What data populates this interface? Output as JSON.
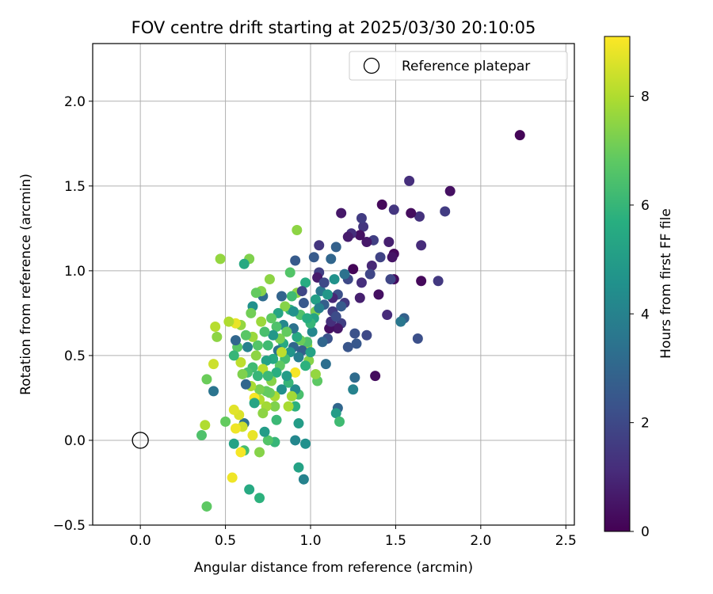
{
  "chart_data": {
    "type": "scatter",
    "title": "FOV centre drift starting at 2025/03/30 20:10:05",
    "xlabel": "Angular distance from reference (arcmin)",
    "ylabel": "Rotation from reference (arcmin)",
    "xlim": [
      -0.28,
      2.55
    ],
    "ylim": [
      -0.5,
      2.34
    ],
    "x_ticks": [
      "0.0",
      "0.5",
      "1.0",
      "1.5",
      "2.0",
      "2.5"
    ],
    "y_ticks": [
      "−0.5",
      "0.0",
      "0.5",
      "1.0",
      "1.5",
      "2.0"
    ],
    "grid": true,
    "legend": {
      "position": "top-right",
      "entries": [
        "Reference platepar"
      ]
    },
    "reference_point": {
      "x": 0.0,
      "y": 0.0
    },
    "colorbar": {
      "label": "Hours from first FF file",
      "colormap": "viridis",
      "range": [
        0,
        9.1
      ],
      "ticks": [
        "0",
        "2",
        "4",
        "6",
        "8"
      ]
    },
    "points": [
      {
        "x": 2.23,
        "y": 1.8,
        "c": 0.1
      },
      {
        "x": 1.82,
        "y": 1.47,
        "c": 0.4
      },
      {
        "x": 1.79,
        "y": 1.35,
        "c": 1.6
      },
      {
        "x": 1.75,
        "y": 0.94,
        "c": 1.5
      },
      {
        "x": 1.65,
        "y": 0.94,
        "c": 0.2
      },
      {
        "x": 1.64,
        "y": 1.32,
        "c": 1.3
      },
      {
        "x": 1.65,
        "y": 1.15,
        "c": 1.1
      },
      {
        "x": 1.63,
        "y": 0.6,
        "c": 2.2
      },
      {
        "x": 1.58,
        "y": 1.53,
        "c": 1.2
      },
      {
        "x": 1.59,
        "y": 1.34,
        "c": 0.3
      },
      {
        "x": 1.55,
        "y": 0.72,
        "c": 2.8
      },
      {
        "x": 1.53,
        "y": 0.7,
        "c": 3.6
      },
      {
        "x": 1.49,
        "y": 1.36,
        "c": 1.4
      },
      {
        "x": 1.49,
        "y": 1.1,
        "c": 0.2
      },
      {
        "x": 1.49,
        "y": 0.95,
        "c": 0.3
      },
      {
        "x": 1.48,
        "y": 1.08,
        "c": 0.5
      },
      {
        "x": 1.47,
        "y": 0.95,
        "c": 1.9
      },
      {
        "x": 1.46,
        "y": 1.17,
        "c": 0.8
      },
      {
        "x": 1.45,
        "y": 0.74,
        "c": 1.1
      },
      {
        "x": 1.42,
        "y": 1.39,
        "c": 0.2
      },
      {
        "x": 1.41,
        "y": 1.08,
        "c": 1.8
      },
      {
        "x": 1.4,
        "y": 0.86,
        "c": 0.4
      },
      {
        "x": 1.38,
        "y": 0.38,
        "c": 0.3
      },
      {
        "x": 1.37,
        "y": 1.18,
        "c": 1.7
      },
      {
        "x": 1.36,
        "y": 1.03,
        "c": 1.0
      },
      {
        "x": 1.35,
        "y": 0.98,
        "c": 1.9
      },
      {
        "x": 1.33,
        "y": 1.17,
        "c": 0.6
      },
      {
        "x": 1.31,
        "y": 1.26,
        "c": 1.4
      },
      {
        "x": 1.3,
        "y": 1.31,
        "c": 1.6
      },
      {
        "x": 1.3,
        "y": 0.93,
        "c": 1.2
      },
      {
        "x": 1.29,
        "y": 0.84,
        "c": 0.8
      },
      {
        "x": 1.29,
        "y": 1.21,
        "c": 0.4
      },
      {
        "x": 1.33,
        "y": 0.62,
        "c": 2.0
      },
      {
        "x": 1.27,
        "y": 0.57,
        "c": 2.5
      },
      {
        "x": 1.26,
        "y": 0.63,
        "c": 2.3
      },
      {
        "x": 1.26,
        "y": 0.37,
        "c": 3.2
      },
      {
        "x": 1.25,
        "y": 0.3,
        "c": 4.0
      },
      {
        "x": 1.25,
        "y": 1.01,
        "c": 0.1
      },
      {
        "x": 1.24,
        "y": 1.22,
        "c": 1.2
      },
      {
        "x": 1.22,
        "y": 1.2,
        "c": 0.7
      },
      {
        "x": 1.22,
        "y": 0.55,
        "c": 2.4
      },
      {
        "x": 1.22,
        "y": 0.95,
        "c": 2.0
      },
      {
        "x": 1.2,
        "y": 0.81,
        "c": 1.5
      },
      {
        "x": 1.18,
        "y": 1.34,
        "c": 0.6
      },
      {
        "x": 1.18,
        "y": 0.69,
        "c": 1.7
      },
      {
        "x": 1.16,
        "y": 0.86,
        "c": 2.2
      },
      {
        "x": 1.16,
        "y": 0.66,
        "c": 0.6
      },
      {
        "x": 1.16,
        "y": 0.19,
        "c": 3.0
      },
      {
        "x": 1.15,
        "y": 0.16,
        "c": 5.0
      },
      {
        "x": 1.17,
        "y": 0.11,
        "c": 6.2
      },
      {
        "x": 1.15,
        "y": 1.14,
        "c": 2.8
      },
      {
        "x": 1.14,
        "y": 0.95,
        "c": 4.6
      },
      {
        "x": 1.13,
        "y": 0.84,
        "c": 1.0
      },
      {
        "x": 1.13,
        "y": 0.76,
        "c": 1.6
      },
      {
        "x": 1.12,
        "y": 1.07,
        "c": 3.0
      },
      {
        "x": 1.11,
        "y": 0.66,
        "c": 0.4
      },
      {
        "x": 1.1,
        "y": 0.6,
        "c": 2.3
      },
      {
        "x": 1.09,
        "y": 0.45,
        "c": 3.3
      },
      {
        "x": 1.08,
        "y": 0.8,
        "c": 2.7
      },
      {
        "x": 1.07,
        "y": 0.58,
        "c": 3.0
      },
      {
        "x": 1.06,
        "y": 0.88,
        "c": 3.6
      },
      {
        "x": 1.05,
        "y": 1.15,
        "c": 1.4
      },
      {
        "x": 1.05,
        "y": 0.99,
        "c": 1.7
      },
      {
        "x": 1.04,
        "y": 0.96,
        "c": 0.7
      },
      {
        "x": 1.03,
        "y": 0.83,
        "c": 5.1
      },
      {
        "x": 1.04,
        "y": 0.35,
        "c": 6.8
      },
      {
        "x": 1.03,
        "y": 0.39,
        "c": 7.6
      },
      {
        "x": 1.03,
        "y": 0.76,
        "c": 7.3
      },
      {
        "x": 1.02,
        "y": 0.72,
        "c": 5.3
      },
      {
        "x": 1.02,
        "y": 1.08,
        "c": 2.6
      },
      {
        "x": 1.01,
        "y": 0.64,
        "c": 4.2
      },
      {
        "x": 1.0,
        "y": 0.69,
        "c": 6.0
      },
      {
        "x": 0.99,
        "y": 0.47,
        "c": 7.4
      },
      {
        "x": 0.98,
        "y": 0.56,
        "c": 7.7
      },
      {
        "x": 0.98,
        "y": 0.58,
        "c": 6.5
      },
      {
        "x": 0.97,
        "y": 0.44,
        "c": 5.8
      },
      {
        "x": 0.97,
        "y": 0.93,
        "c": 5.6
      },
      {
        "x": 0.97,
        "y": -0.02,
        "c": 4.5
      },
      {
        "x": 0.96,
        "y": -0.23,
        "c": 4.0
      },
      {
        "x": 0.96,
        "y": 0.81,
        "c": 2.5
      },
      {
        "x": 0.95,
        "y": 0.53,
        "c": 2.7
      },
      {
        "x": 0.94,
        "y": 0.59,
        "c": 7.0
      },
      {
        "x": 0.94,
        "y": 0.74,
        "c": 6.5
      },
      {
        "x": 0.93,
        "y": -0.16,
        "c": 5.2
      },
      {
        "x": 0.93,
        "y": 0.27,
        "c": 6.4
      },
      {
        "x": 0.93,
        "y": 0.1,
        "c": 5.0
      },
      {
        "x": 0.92,
        "y": 0.87,
        "c": 7.5
      },
      {
        "x": 0.92,
        "y": 0.61,
        "c": 5.5
      },
      {
        "x": 0.92,
        "y": 1.24,
        "c": 7.5
      },
      {
        "x": 0.91,
        "y": 1.06,
        "c": 2.6
      },
      {
        "x": 0.91,
        "y": 0.4,
        "c": 9.0
      },
      {
        "x": 0.91,
        "y": 0.3,
        "c": 4.3
      },
      {
        "x": 0.91,
        "y": 0.2,
        "c": 5.8
      },
      {
        "x": 0.91,
        "y": 0.0,
        "c": 4.2
      },
      {
        "x": 0.9,
        "y": 0.55,
        "c": 3.0
      },
      {
        "x": 0.9,
        "y": 0.66,
        "c": 3.4
      },
      {
        "x": 0.89,
        "y": 0.85,
        "c": 6.2
      },
      {
        "x": 0.89,
        "y": 0.26,
        "c": 7.8
      },
      {
        "x": 0.88,
        "y": 0.99,
        "c": 6.6
      },
      {
        "x": 0.88,
        "y": 0.77,
        "c": 5.9
      },
      {
        "x": 0.88,
        "y": 0.52,
        "c": 4.7
      },
      {
        "x": 0.87,
        "y": 0.34,
        "c": 6.0
      },
      {
        "x": 0.87,
        "y": 0.2,
        "c": 7.9
      },
      {
        "x": 0.86,
        "y": 0.38,
        "c": 5.0
      },
      {
        "x": 0.85,
        "y": 0.79,
        "c": 7.4
      },
      {
        "x": 0.85,
        "y": 0.48,
        "c": 6.3
      },
      {
        "x": 0.84,
        "y": 0.57,
        "c": 5.5
      },
      {
        "x": 0.84,
        "y": 0.68,
        "c": 4.2
      },
      {
        "x": 0.83,
        "y": 0.3,
        "c": 4.5
      },
      {
        "x": 0.83,
        "y": 0.85,
        "c": 2.9
      },
      {
        "x": 0.82,
        "y": 0.6,
        "c": 7.2
      },
      {
        "x": 0.82,
        "y": 0.44,
        "c": 6.8
      },
      {
        "x": 0.81,
        "y": 0.75,
        "c": 5.3
      },
      {
        "x": 0.81,
        "y": 0.53,
        "c": 3.5
      },
      {
        "x": 0.8,
        "y": 0.67,
        "c": 6.5
      },
      {
        "x": 0.8,
        "y": 0.4,
        "c": 5.7
      },
      {
        "x": 0.8,
        "y": 0.12,
        "c": 6.1
      },
      {
        "x": 0.79,
        "y": 0.26,
        "c": 7.9
      },
      {
        "x": 0.79,
        "y": 0.2,
        "c": 7.3
      },
      {
        "x": 0.79,
        "y": -0.01,
        "c": 6.0
      },
      {
        "x": 0.78,
        "y": 0.62,
        "c": 4.8
      },
      {
        "x": 0.78,
        "y": 0.48,
        "c": 5.5
      },
      {
        "x": 0.77,
        "y": 0.72,
        "c": 6.8
      },
      {
        "x": 0.77,
        "y": 0.35,
        "c": 7.4
      },
      {
        "x": 0.76,
        "y": 0.28,
        "c": 7.0
      },
      {
        "x": 0.76,
        "y": 0.95,
        "c": 7.5
      },
      {
        "x": 0.75,
        "y": 0.56,
        "c": 6.2
      },
      {
        "x": 0.75,
        "y": 0.0,
        "c": 6.6
      },
      {
        "x": 0.74,
        "y": 0.47,
        "c": 5.2
      },
      {
        "x": 0.74,
        "y": 0.29,
        "c": 6.9
      },
      {
        "x": 0.74,
        "y": 0.2,
        "c": 7.8
      },
      {
        "x": 0.73,
        "y": 0.64,
        "c": 6.4
      },
      {
        "x": 0.73,
        "y": 0.05,
        "c": 5.0
      },
      {
        "x": 0.72,
        "y": 0.85,
        "c": 3.2
      },
      {
        "x": 0.72,
        "y": 0.42,
        "c": 8.1
      },
      {
        "x": 0.71,
        "y": 0.7,
        "c": 7.7
      },
      {
        "x": 0.71,
        "y": 0.88,
        "c": 7.4
      },
      {
        "x": 0.7,
        "y": -0.34,
        "c": 5.8
      },
      {
        "x": 0.7,
        "y": -0.07,
        "c": 7.4
      },
      {
        "x": 0.7,
        "y": 0.3,
        "c": 7.2
      },
      {
        "x": 0.7,
        "y": 0.24,
        "c": 8.0
      },
      {
        "x": 0.69,
        "y": 0.56,
        "c": 6.6
      },
      {
        "x": 0.69,
        "y": 0.38,
        "c": 6.0
      },
      {
        "x": 0.68,
        "y": 0.87,
        "c": 6.9
      },
      {
        "x": 0.68,
        "y": 0.5,
        "c": 7.5
      },
      {
        "x": 0.67,
        "y": 0.25,
        "c": 9.0
      },
      {
        "x": 0.67,
        "y": 0.22,
        "c": 5.3
      },
      {
        "x": 0.66,
        "y": 0.79,
        "c": 4.5
      },
      {
        "x": 0.66,
        "y": 0.61,
        "c": 7.7
      },
      {
        "x": 0.66,
        "y": 0.43,
        "c": 6.2
      },
      {
        "x": 0.66,
        "y": 0.03,
        "c": 8.8
      },
      {
        "x": 0.65,
        "y": 0.75,
        "c": 7.1
      },
      {
        "x": 0.65,
        "y": 0.32,
        "c": 7.9
      },
      {
        "x": 0.64,
        "y": 1.07,
        "c": 7.3
      },
      {
        "x": 0.64,
        "y": -0.29,
        "c": 5.5
      },
      {
        "x": 0.63,
        "y": 0.55,
        "c": 4.0
      },
      {
        "x": 0.63,
        "y": 0.4,
        "c": 6.4
      },
      {
        "x": 0.62,
        "y": 0.33,
        "c": 3.0
      },
      {
        "x": 0.62,
        "y": 0.62,
        "c": 6.7
      },
      {
        "x": 0.61,
        "y": 0.1,
        "c": 3.4
      },
      {
        "x": 0.61,
        "y": -0.06,
        "c": 6.3
      },
      {
        "x": 0.61,
        "y": 1.04,
        "c": 5.5
      },
      {
        "x": 0.6,
        "y": 0.39,
        "c": 7.3
      },
      {
        "x": 0.6,
        "y": 0.08,
        "c": 8.4
      },
      {
        "x": 0.59,
        "y": -0.07,
        "c": 9.0
      },
      {
        "x": 0.59,
        "y": 0.68,
        "c": 7.6
      },
      {
        "x": 0.59,
        "y": 0.46,
        "c": 8.2
      },
      {
        "x": 0.58,
        "y": 0.15,
        "c": 8.6
      },
      {
        "x": 0.57,
        "y": 0.55,
        "c": 6.7
      },
      {
        "x": 0.56,
        "y": 0.07,
        "c": 8.9
      },
      {
        "x": 0.56,
        "y": 0.69,
        "c": 8.8
      },
      {
        "x": 0.56,
        "y": 0.59,
        "c": 3.0
      },
      {
        "x": 0.55,
        "y": 0.5,
        "c": 6.0
      },
      {
        "x": 0.55,
        "y": -0.02,
        "c": 5.2
      },
      {
        "x": 0.55,
        "y": 0.18,
        "c": 8.7
      },
      {
        "x": 0.54,
        "y": -0.22,
        "c": 8.9
      },
      {
        "x": 0.52,
        "y": 0.7,
        "c": 8.0
      },
      {
        "x": 0.5,
        "y": 0.11,
        "c": 6.9
      },
      {
        "x": 0.47,
        "y": 1.07,
        "c": 7.6
      },
      {
        "x": 0.45,
        "y": 0.61,
        "c": 7.5
      },
      {
        "x": 0.44,
        "y": 0.67,
        "c": 8.1
      },
      {
        "x": 0.43,
        "y": 0.29,
        "c": 3.5
      },
      {
        "x": 0.43,
        "y": 0.45,
        "c": 8.4
      },
      {
        "x": 0.39,
        "y": 0.36,
        "c": 7.0
      },
      {
        "x": 0.39,
        "y": -0.39,
        "c": 6.8
      },
      {
        "x": 0.38,
        "y": 0.09,
        "c": 8.0
      },
      {
        "x": 0.36,
        "y": 0.03,
        "c": 6.5
      },
      {
        "x": 1.12,
        "y": 0.7,
        "c": 1.2
      },
      {
        "x": 1.08,
        "y": 0.93,
        "c": 2.0
      },
      {
        "x": 1.18,
        "y": 0.79,
        "c": 2.6
      },
      {
        "x": 1.05,
        "y": 0.78,
        "c": 3.9
      },
      {
        "x": 0.98,
        "y": 0.72,
        "c": 5.6
      },
      {
        "x": 1.1,
        "y": 0.86,
        "c": 4.8
      },
      {
        "x": 1.2,
        "y": 0.98,
        "c": 3.4
      },
      {
        "x": 0.95,
        "y": 0.88,
        "c": 1.9
      },
      {
        "x": 1.15,
        "y": 0.73,
        "c": 2.1
      },
      {
        "x": 0.9,
        "y": 0.76,
        "c": 4.6
      },
      {
        "x": 1.0,
        "y": 0.52,
        "c": 5.2
      },
      {
        "x": 0.86,
        "y": 0.64,
        "c": 6.9
      },
      {
        "x": 0.75,
        "y": 0.38,
        "c": 6.1
      },
      {
        "x": 0.83,
        "y": 0.52,
        "c": 8.2
      },
      {
        "x": 0.72,
        "y": 0.16,
        "c": 7.5
      },
      {
        "x": 0.93,
        "y": 0.49,
        "c": 3.8
      }
    ]
  }
}
